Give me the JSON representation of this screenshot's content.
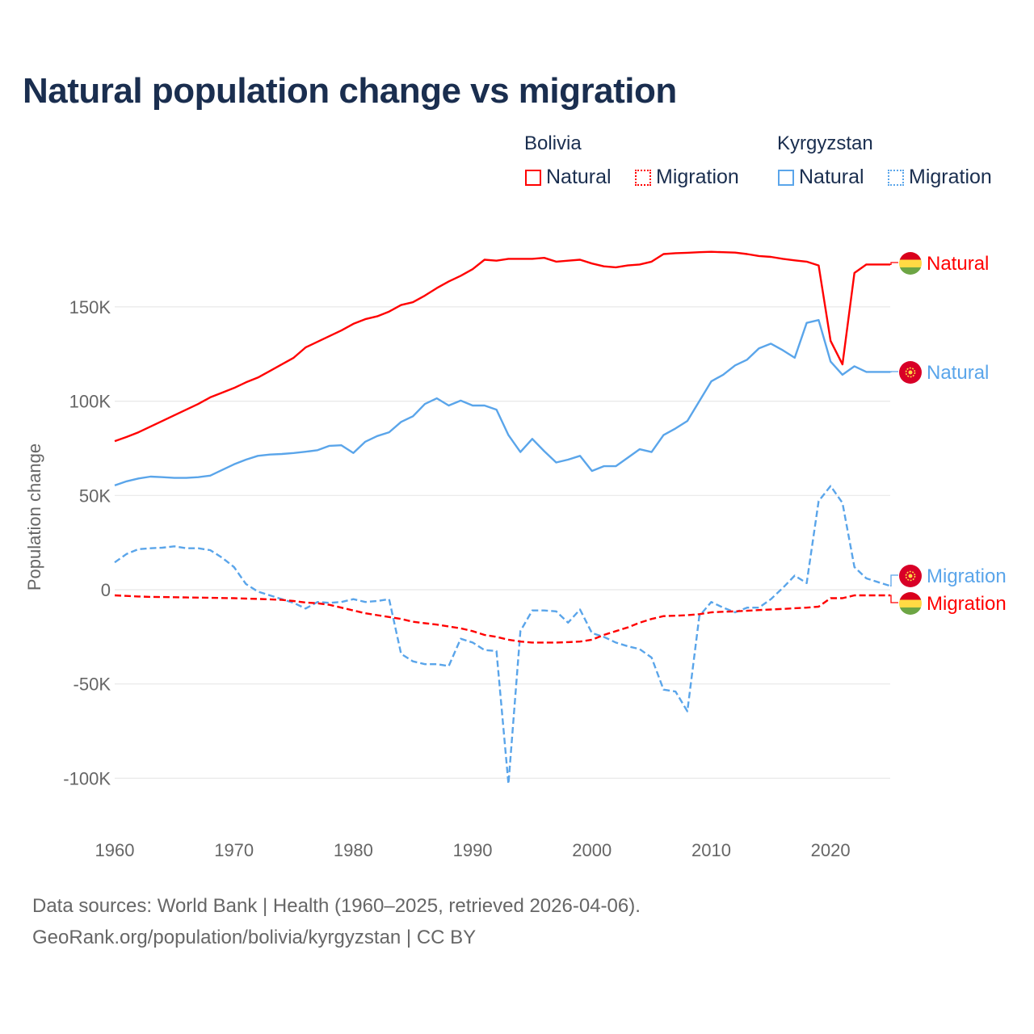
{
  "title": "Natural population change vs migration",
  "legend": {
    "groups": [
      {
        "name": "Bolivia",
        "items": [
          {
            "label": "Natural",
            "style": "solid"
          },
          {
            "label": "Migration",
            "style": "dotted"
          }
        ],
        "color": "#ff0000"
      },
      {
        "name": "Kyrgyzstan",
        "items": [
          {
            "label": "Natural",
            "style": "solid"
          },
          {
            "label": "Migration",
            "style": "dotted"
          }
        ],
        "color": "#5aa5ea"
      }
    ]
  },
  "footer": {
    "line1": "Data sources: World Bank | Health (1960–2025, retrieved 2026-04-06).",
    "line2": "GeoRank.org/population/bolivia/kyrgyzstan | CC BY"
  },
  "chart_data": {
    "type": "line",
    "title": "Natural population change vs migration",
    "xlabel": "",
    "ylabel": "Population change",
    "xlim": [
      1960,
      2025
    ],
    "ylim": [
      -115000,
      195000
    ],
    "yticks": [
      {
        "v": 150000,
        "label": "150K"
      },
      {
        "v": 100000,
        "label": "100K"
      },
      {
        "v": 50000,
        "label": "50K"
      },
      {
        "v": 0,
        "label": "0"
      },
      {
        "v": -50000,
        "label": "-50K"
      },
      {
        "v": -100000,
        "label": "-100K"
      }
    ],
    "xticks": [
      1960,
      1970,
      1980,
      1990,
      2000,
      2010,
      2020
    ],
    "grid": true,
    "x_start": 1960,
    "series": [
      {
        "name": "Bolivia Natural",
        "end_label": "Natural",
        "country": "Bolivia",
        "color": "#ff0000",
        "dash": false,
        "values": [
          78800,
          81000,
          83500,
          86500,
          89500,
          92500,
          95500,
          98500,
          102000,
          104500,
          107000,
          110000,
          112500,
          116000,
          119500,
          123000,
          128500,
          131500,
          134500,
          137500,
          141000,
          143500,
          145000,
          147500,
          151000,
          152500,
          156000,
          160000,
          163500,
          166500,
          170000,
          175000,
          174500,
          175500,
          175500,
          175500,
          176000,
          174000,
          174500,
          175000,
          173000,
          171500,
          171000,
          172000,
          172500,
          174000,
          178000,
          178500,
          178700,
          179000,
          179200,
          179000,
          178800,
          178000,
          177000,
          176500,
          175500,
          174700,
          174000,
          172000,
          132000,
          119500,
          168000,
          172500,
          172500,
          172500
        ]
      },
      {
        "name": "Kyrgyzstan Natural",
        "end_label": "Natural",
        "country": "Kyrgyzstan",
        "color": "#5aa5ea",
        "dash": false,
        "values": [
          55300,
          57500,
          59000,
          60000,
          59700,
          59300,
          59300,
          59700,
          60500,
          63500,
          66500,
          69000,
          71000,
          71700,
          72000,
          72500,
          73200,
          74000,
          76300,
          76600,
          72500,
          78500,
          81500,
          83500,
          89000,
          92000,
          98500,
          101500,
          97700,
          100300,
          97700,
          97700,
          95500,
          82000,
          73000,
          80000,
          73500,
          67500,
          69000,
          71000,
          63000,
          65500,
          65500,
          70000,
          74500,
          73000,
          82000,
          85500,
          89500,
          100000,
          110500,
          114000,
          119000,
          122000,
          128000,
          130500,
          127000,
          123000,
          141500,
          143000,
          121000,
          114000,
          118500,
          115500,
          115500,
          115500
        ]
      },
      {
        "name": "Kyrgyzstan Migration",
        "end_label": "Migration",
        "country": "Kyrgyzstan",
        "color": "#5aa5ea",
        "dash": true,
        "values": [
          14500,
          19000,
          21500,
          22000,
          22300,
          23000,
          22000,
          22000,
          21000,
          17000,
          12000,
          3000,
          -1000,
          -3000,
          -5000,
          -7000,
          -10000,
          -6500,
          -7000,
          -6500,
          -5000,
          -6500,
          -6000,
          -5000,
          -34000,
          -38000,
          -39500,
          -39500,
          -40500,
          -26000,
          -28000,
          -32000,
          -32500,
          -103000,
          -22000,
          -11000,
          -11000,
          -11500,
          -17500,
          -10500,
          -23000,
          -25000,
          -28000,
          -30000,
          -31500,
          -36000,
          -53000,
          -54000,
          -64500,
          -14000,
          -6500,
          -9500,
          -12000,
          -9500,
          -9500,
          -5000,
          1000,
          7500,
          3500,
          47000,
          55000,
          46000,
          12000,
          6000,
          4000,
          2000
        ]
      },
      {
        "name": "Bolivia Migration",
        "end_label": "Migration",
        "country": "Bolivia",
        "color": "#ff0000",
        "dash": true,
        "values": [
          -3000,
          -3300,
          -3600,
          -3800,
          -3900,
          -4000,
          -4100,
          -4200,
          -4300,
          -4400,
          -4500,
          -4700,
          -4900,
          -5100,
          -5400,
          -6000,
          -6800,
          -7200,
          -8000,
          -9500,
          -11000,
          -12500,
          -13500,
          -14500,
          -15500,
          -17000,
          -17800,
          -18500,
          -19500,
          -20500,
          -22000,
          -24000,
          -25000,
          -26500,
          -27500,
          -28000,
          -28000,
          -28000,
          -27800,
          -27500,
          -26500,
          -24000,
          -22000,
          -20000,
          -17500,
          -15500,
          -14000,
          -13800,
          -13500,
          -13000,
          -12000,
          -11700,
          -11500,
          -11200,
          -10800,
          -10500,
          -10200,
          -9800,
          -9500,
          -9000,
          -4500,
          -4500,
          -3000,
          -3000,
          -3000,
          -3000
        ]
      }
    ]
  }
}
